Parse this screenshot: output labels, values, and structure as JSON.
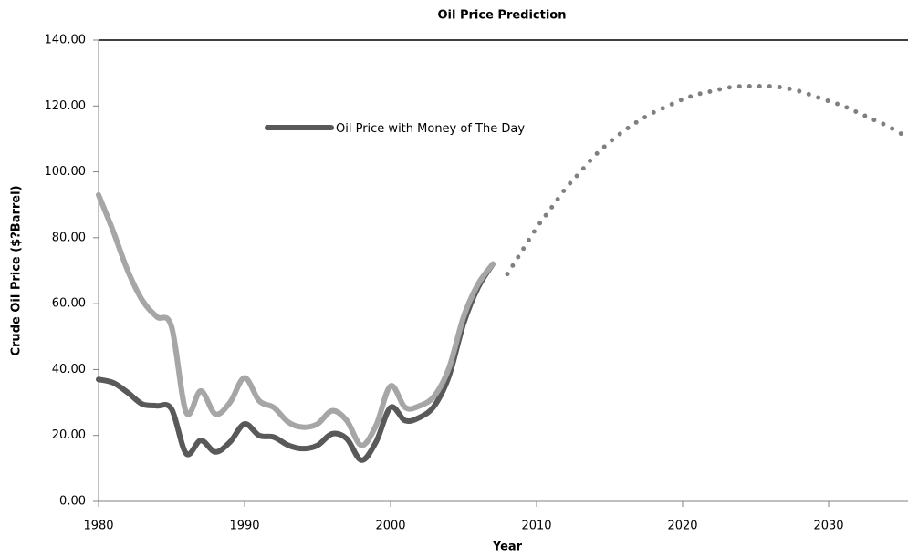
{
  "chart_data": {
    "type": "line",
    "title": "Oil Price Prediction",
    "x_label": "Year",
    "y_label": "Crude Oil Price ($?Barrel)",
    "x": [
      1980,
      1981,
      1982,
      1983,
      1984,
      1985,
      1986,
      1987,
      1988,
      1989,
      1990,
      1991,
      1992,
      1993,
      1994,
      1995,
      1996,
      1997,
      1998,
      1999,
      2000,
      2001,
      2002,
      2003,
      2004,
      2005,
      2006,
      2007,
      2008,
      2009,
      2010,
      2011,
      2012,
      2013,
      2014,
      2015,
      2016,
      2017,
      2018,
      2019,
      2020,
      2021,
      2022,
      2023,
      2024,
      2025,
      2026,
      2027,
      2028,
      2029,
      2030,
      2031,
      2032,
      2033,
      2034,
      2035
    ],
    "series": [
      {
        "name": "Oil Price with Money of The Day",
        "color": "#595959",
        "style": "solid",
        "values": [
          37,
          36,
          33,
          29.5,
          29,
          28,
          14.5,
          18.5,
          15,
          18,
          23.5,
          20,
          19.5,
          17,
          16,
          17,
          20.5,
          19,
          12.5,
          18,
          28.5,
          24.5,
          25.5,
          29,
          38,
          54,
          65,
          72,
          null,
          null,
          null,
          null,
          null,
          null,
          null,
          null,
          null,
          null,
          null,
          null,
          null,
          null,
          null,
          null,
          null,
          null,
          null,
          null,
          null,
          null,
          null,
          null,
          null,
          null,
          null,
          null
        ]
      },
      {
        "color": "#a6a6a6",
        "style": "solid",
        "values": [
          93,
          82,
          70,
          61,
          56,
          53,
          27,
          33.5,
          26.5,
          30,
          37.5,
          30.5,
          28.5,
          24,
          22.5,
          23.5,
          27.5,
          24.5,
          17,
          23,
          35,
          28.5,
          29,
          32,
          40.5,
          56,
          66,
          72,
          null,
          null,
          null,
          null,
          null,
          null,
          null,
          null,
          null,
          null,
          null,
          null,
          null,
          null,
          null,
          null,
          null,
          null,
          null,
          null,
          null,
          null,
          null,
          null,
          null,
          null,
          null,
          null
        ]
      },
      {
        "color": "#808080",
        "style": "dotted",
        "values": [
          null,
          null,
          null,
          null,
          null,
          null,
          null,
          null,
          null,
          null,
          null,
          null,
          null,
          null,
          null,
          null,
          null,
          null,
          null,
          null,
          null,
          null,
          null,
          null,
          null,
          null,
          null,
          null,
          69,
          76,
          83,
          89,
          95,
          100,
          105,
          109,
          112.5,
          115.5,
          118,
          120,
          122,
          123.5,
          124.5,
          125.5,
          126,
          126,
          126,
          125.5,
          124.5,
          123,
          121.5,
          120,
          118,
          116,
          114,
          111.5
        ]
      }
    ],
    "xlim": [
      1980,
      2035
    ],
    "xticks": [
      1980,
      1990,
      2000,
      2010,
      2020,
      2030
    ],
    "ylim": [
      0,
      140
    ],
    "yticks": [
      {
        "value": 0,
        "label": "0.00"
      },
      {
        "value": 20,
        "label": "20.00"
      },
      {
        "value": 40,
        "label": "40.00"
      },
      {
        "value": 60,
        "label": "60.00"
      },
      {
        "value": 80,
        "label": "80.00"
      },
      {
        "value": 100,
        "label": "100.00"
      },
      {
        "value": 120,
        "label": "120.00"
      },
      {
        "value": 140,
        "label": "140.00"
      }
    ]
  }
}
